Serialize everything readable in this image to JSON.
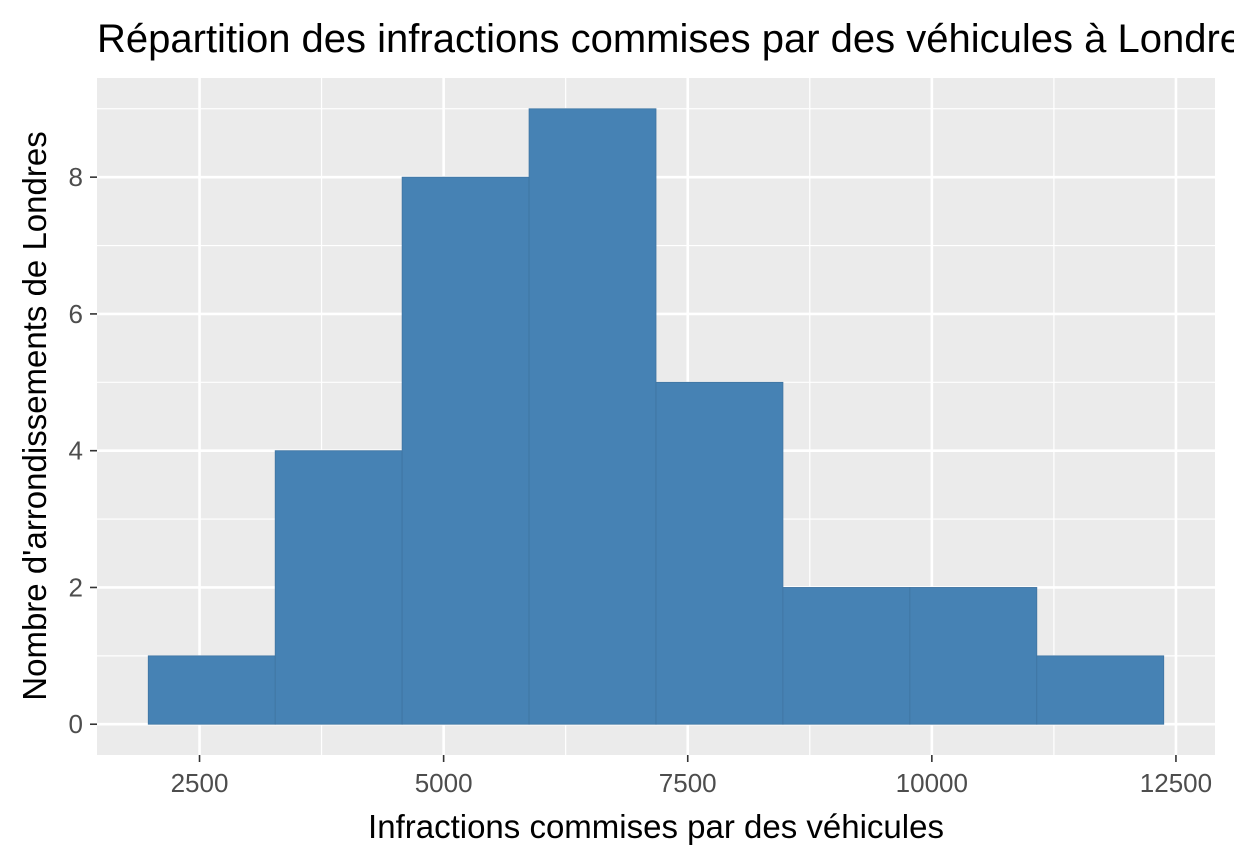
{
  "chart_data": {
    "type": "bar",
    "title": "Répartition des infractions commises par des véhicules à Londres",
    "xlabel": "Infractions commises par des véhicules",
    "ylabel": "Nombre d'arrondissements de Londres",
    "bins": [
      {
        "x0": 1975,
        "x1": 3275,
        "count": 1
      },
      {
        "x0": 3275,
        "x1": 4575,
        "count": 4
      },
      {
        "x0": 4575,
        "x1": 5875,
        "count": 8
      },
      {
        "x0": 5875,
        "x1": 7175,
        "count": 9
      },
      {
        "x0": 7175,
        "x1": 8475,
        "count": 5
      },
      {
        "x0": 8475,
        "x1": 9775,
        "count": 2
      },
      {
        "x0": 9775,
        "x1": 11075,
        "count": 2
      },
      {
        "x0": 11075,
        "x1": 12375,
        "count": 1
      }
    ],
    "xlim": [
      1450,
      12900
    ],
    "ylim": [
      -0.45,
      9.45
    ],
    "x_ticks": [
      2500,
      5000,
      7500,
      10000,
      12500
    ],
    "x_minor_ticks": [
      3750,
      6250,
      8750,
      11250
    ],
    "y_ticks": [
      0,
      2,
      4,
      6,
      8
    ],
    "y_minor_ticks": [
      1,
      3,
      5,
      7,
      9
    ],
    "grid": true,
    "bar_color": "#4682b4",
    "panel_color": "#ebebeb",
    "grid_color": "#ffffff"
  }
}
